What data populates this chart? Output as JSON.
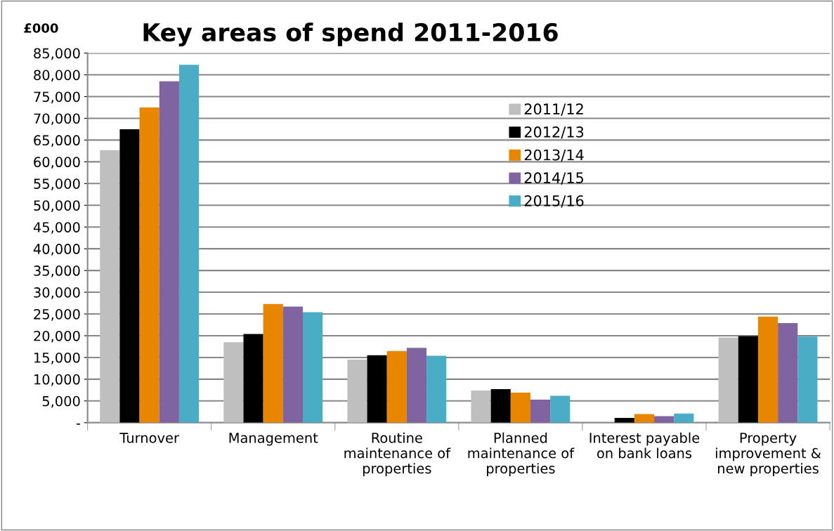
{
  "chart_data": {
    "type": "bar",
    "title": "Key areas of spend 2011-2016",
    "ylabel": "£000",
    "categories": [
      "Turnover",
      "Management",
      "Routine\nmaintenance of\nproperties",
      "Planned\nmaintenance of\nproperties",
      "Interest payable\non bank loans",
      "Property\nimprovement &\nnew properties"
    ],
    "series": [
      {
        "name": "2011/12",
        "color": "#bfbfbf",
        "values": [
          62700,
          18500,
          14500,
          7400,
          null,
          19600
        ]
      },
      {
        "name": "2012/13",
        "color": "#000000",
        "values": [
          67500,
          20400,
          15500,
          7700,
          1100,
          19900
        ]
      },
      {
        "name": "2013/14",
        "color": "#e88600",
        "values": [
          72500,
          27300,
          16500,
          6900,
          2000,
          24400
        ]
      },
      {
        "name": "2014/15",
        "color": "#8064a2",
        "values": [
          78500,
          26700,
          17200,
          5300,
          1500,
          22900
        ]
      },
      {
        "name": "2015/16",
        "color": "#4bacc6",
        "values": [
          82300,
          25400,
          15400,
          6200,
          2100,
          19800
        ]
      }
    ],
    "ylim": [
      0,
      85000
    ],
    "yticks": [
      {
        "value": 0,
        "label": "-"
      },
      {
        "value": 5000,
        "label": "5,000"
      },
      {
        "value": 10000,
        "label": "10,000"
      },
      {
        "value": 15000,
        "label": "15,000"
      },
      {
        "value": 20000,
        "label": "20,000"
      },
      {
        "value": 25000,
        "label": "25,000"
      },
      {
        "value": 30000,
        "label": "30,000"
      },
      {
        "value": 35000,
        "label": "35,000"
      },
      {
        "value": 40000,
        "label": "40,000"
      },
      {
        "value": 45000,
        "label": "45,000"
      },
      {
        "value": 50000,
        "label": "50,000"
      },
      {
        "value": 55000,
        "label": "55,000"
      },
      {
        "value": 60000,
        "label": "60,000"
      },
      {
        "value": 65000,
        "label": "65,000"
      },
      {
        "value": 70000,
        "label": "70,000"
      },
      {
        "value": 75000,
        "label": "75,000"
      },
      {
        "value": 80000,
        "label": "80,000"
      },
      {
        "value": 85000,
        "label": "85,000"
      }
    ],
    "grid": "y",
    "legend": "top"
  }
}
